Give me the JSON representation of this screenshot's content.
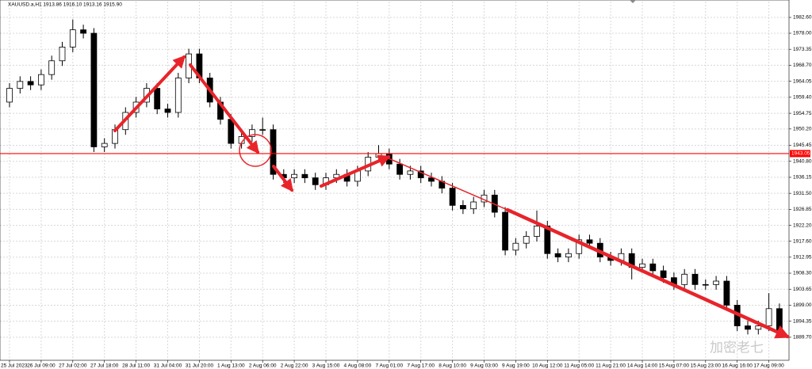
{
  "chart_data": {
    "type": "candlestick",
    "title": "XAUUSD.a,H1  1913.86 1916.10 1913.16 1915.90",
    "watermark": "加密老七",
    "categories": [
      "25 Jul 2023",
      null,
      null,
      "26 Jul 09:00",
      null,
      null,
      "27 Jul 02:00",
      null,
      null,
      "27 Jul 18:00",
      null,
      null,
      "28 Jul 11:00",
      null,
      null,
      "31 Jul 04:00",
      null,
      null,
      "31 Jul 20:00",
      null,
      null,
      "1 Aug 13:00",
      null,
      null,
      "2 Aug 06:00",
      null,
      null,
      "2 Aug 22:00",
      null,
      null,
      "3 Aug 15:00",
      null,
      null,
      "4 Aug 08:00",
      null,
      null,
      "7 Aug 01:00",
      null,
      null,
      "7 Aug 17:00",
      null,
      null,
      "8 Aug 10:00",
      null,
      null,
      "9 Aug 03:00",
      null,
      null,
      "9 Aug 19:00",
      null,
      null,
      "10 Aug 12:00",
      null,
      null,
      "11 Aug 05:00",
      null,
      null,
      "11 Aug 21:00",
      null,
      null,
      "14 Aug 14:00",
      null,
      null,
      "15 Aug 07:00",
      null,
      null,
      "15 Aug 23:00",
      null,
      null,
      "16 Aug 16:00",
      null,
      null,
      "17 Aug 09:00",
      null
    ],
    "open": [
      1958,
      1962,
      1964,
      1963,
      1966,
      1970,
      1974,
      1979,
      1978,
      1945,
      1946,
      1950,
      1955,
      1958,
      1962,
      1956,
      1955,
      1965,
      1972,
      1965,
      1958,
      1953,
      1946,
      1948,
      1950,
      1950,
      1937,
      1936,
      1937,
      1936,
      1934,
      1936,
      1937,
      1935,
      1938,
      1942,
      1943,
      1940,
      1937,
      1938,
      1936,
      1935,
      1933,
      1928,
      1927,
      1929,
      1931,
      1926,
      1915,
      1917,
      1919,
      1922,
      1914,
      1913,
      1914,
      1918,
      1917,
      1913,
      1912,
      1914,
      1910,
      1911,
      1909,
      1907,
      1905,
      1908,
      1905,
      1905,
      1906,
      1899,
      1893,
      1892,
      1893,
      1898
    ],
    "high": [
      1963.5,
      1965.5,
      1965.5,
      1967.5,
      1971.5,
      1975.5,
      1982,
      1980.5,
      1979.5,
      1947.5,
      1951.5,
      1956.5,
      1959.5,
      1963.5,
      1963.5,
      1957.5,
      1966.5,
      1973.5,
      1973.5,
      1966.5,
      1959.5,
      1954.5,
      1949.5,
      1951.5,
      1953.5,
      1951.5,
      1938.5,
      1938.5,
      1938.5,
      1937.5,
      1937.5,
      1938.5,
      1938.5,
      1939.5,
      1943.5,
      1945.5,
      1944.5,
      1941.5,
      1939.5,
      1939.5,
      1937.5,
      1936.5,
      1934.5,
      1929.5,
      1930.5,
      1932.5,
      1932.5,
      1927.5,
      1918.5,
      1920.5,
      1926.5,
      1923.5,
      1915.5,
      1915.5,
      1919.5,
      1919.5,
      1918.5,
      1914.5,
      1915.5,
      1915.5,
      1912.5,
      1912.5,
      1910.5,
      1908.5,
      1909.5,
      1909.5,
      1906.5,
      1907.5,
      1907.5,
      1900.5,
      1894.5,
      1894.5,
      1902.5,
      1899.5
    ],
    "low": [
      1956.5,
      1960.5,
      1961.5,
      1961.5,
      1964.5,
      1968.5,
      1972.5,
      1976.5,
      1943.5,
      1943.5,
      1944.5,
      1948.5,
      1953.5,
      1956.5,
      1954.5,
      1953.5,
      1953.5,
      1963.5,
      1963.5,
      1956.5,
      1951.5,
      1944.5,
      1944.5,
      1946.5,
      1948.5,
      1935.5,
      1934.5,
      1934.5,
      1934.5,
      1932.5,
      1932.5,
      1934.5,
      1933.5,
      1933.5,
      1936.5,
      1940.5,
      1938.5,
      1935.5,
      1935.5,
      1934.5,
      1933.5,
      1931.5,
      1926.5,
      1925.5,
      1925.5,
      1927.5,
      1924.5,
      1913.5,
      1913.5,
      1915.5,
      1917.5,
      1912.5,
      1911.5,
      1911.5,
      1912.5,
      1915.5,
      1911.5,
      1910.5,
      1910.5,
      1906.5,
      1908.5,
      1907.5,
      1905.5,
      1903.5,
      1903.5,
      1903.5,
      1903.5,
      1903.5,
      1897.5,
      1891.5,
      1890.5,
      1890.5,
      1891.5,
      1889.5
    ],
    "close": [
      1962,
      1964,
      1963,
      1966,
      1970,
      1974,
      1979,
      1978,
      1945,
      1946,
      1950,
      1955,
      1958,
      1962,
      1956,
      1955,
      1965,
      1972,
      1965,
      1958,
      1953,
      1946,
      1948,
      1950,
      1950,
      1937,
      1936,
      1937,
      1936,
      1934,
      1936,
      1937,
      1935,
      1938,
      1942,
      1943,
      1940,
      1937,
      1938,
      1936,
      1935,
      1933,
      1928,
      1927,
      1929,
      1931,
      1926,
      1915,
      1917,
      1919,
      1922,
      1914,
      1913,
      1914,
      1918,
      1917,
      1913,
      1912,
      1914,
      1910,
      1911,
      1909,
      1907,
      1905,
      1908,
      1905,
      1905,
      1906,
      1899,
      1893,
      1892,
      1893,
      1898,
      1891
    ],
    "bull_color": "#ffffff",
    "bear_color": "#000000",
    "ylim": [
      1883,
      1987.2
    ],
    "yticks": [
      {
        "value": 1982.6,
        "label": "1982.60"
      },
      {
        "value": 1978,
        "label": "1978.00"
      },
      {
        "value": 1973.35,
        "label": "1973.35"
      },
      {
        "value": 1968.7,
        "label": "1968.70"
      },
      {
        "value": 1964.05,
        "label": "1964.05"
      },
      {
        "value": 1959.4,
        "label": "1959.40"
      },
      {
        "value": 1954.75,
        "label": "1954.75"
      },
      {
        "value": 1950.2,
        "label": "1950.20"
      },
      {
        "value": 1945.45,
        "label": "1945.45"
      },
      {
        "value": 1940.8,
        "label": "1940.80"
      },
      {
        "value": 1936.15,
        "label": "1936.15"
      },
      {
        "value": 1931.5,
        "label": "1931.50"
      },
      {
        "value": 1926.85,
        "label": "1926.85"
      },
      {
        "value": 1922.2,
        "label": "1922.20"
      },
      {
        "value": 1917.6,
        "label": "1917.60"
      },
      {
        "value": 1912.95,
        "label": "1912.95"
      },
      {
        "value": 1908.3,
        "label": "1908.30"
      },
      {
        "value": 1903.65,
        "label": "1903.65"
      },
      {
        "value": 1899,
        "label": "1899.00"
      },
      {
        "value": 1894.35,
        "label": "1894.35"
      },
      {
        "value": 1889.7,
        "label": "1889.70"
      }
    ],
    "hline": {
      "value": 1943.05,
      "color": "#ff0000"
    },
    "grid": true
  }
}
